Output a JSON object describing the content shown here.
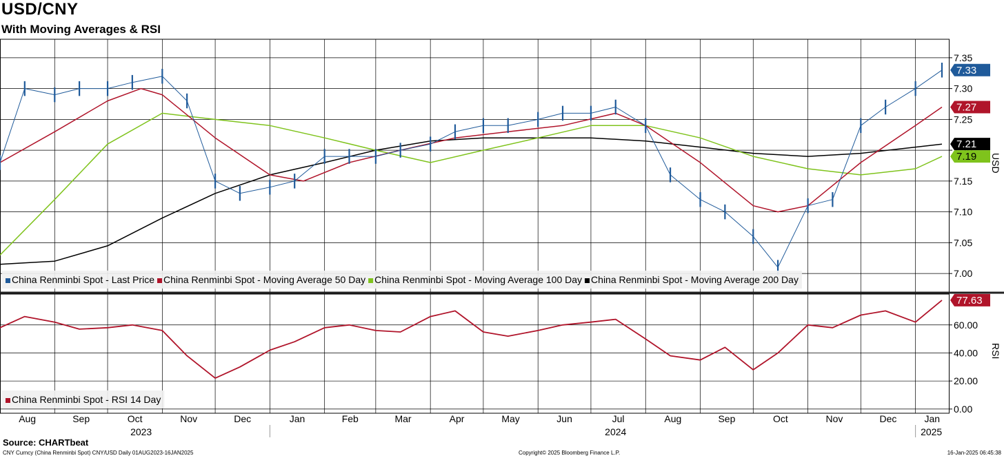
{
  "header": {
    "title": "USD/CNY",
    "subtitle": "With Moving Averages & RSI"
  },
  "footer": {
    "source": "Source: CHARTbeat",
    "ticker_line": "CNY Curncy (China Renminbi Spot) CNY/USD  Daily 01AUG2023-16JAN2025",
    "copyright": "Copyright© 2025 Bloomberg Finance L.P.",
    "timestamp": "16-Jan-2025 06:45:38"
  },
  "colors": {
    "price": "#1f5a9a",
    "ma50": "#b0142a",
    "ma100": "#7fc31c",
    "ma200": "#000000",
    "rsi": "#b0142a",
    "grid": "#000000"
  },
  "chart_data": [
    {
      "type": "line",
      "panel": "price",
      "ylabel": "USD",
      "ylim": [
        6.97,
        7.38
      ],
      "yticks": [
        "7.35",
        "7.30",
        "7.25",
        "7.20",
        "7.15",
        "7.10",
        "7.05",
        "7.00"
      ],
      "x_months": [
        "Aug",
        "Sep",
        "Oct",
        "Nov",
        "Dec",
        "Jan",
        "Feb",
        "Mar",
        "Apr",
        "May",
        "Jun",
        "Jul",
        "Aug",
        "Sep",
        "Oct",
        "Nov",
        "Dec",
        "Jan"
      ],
      "x_years": [
        "2023",
        "2024",
        "2025"
      ],
      "x_range": [
        "2023-08-01",
        "2025-01-16"
      ],
      "last_value_labels": [
        "7.33",
        "7.27",
        "7.21",
        "7.19"
      ],
      "series": [
        {
          "name": "China Renminbi Spot - Last Price",
          "key": "price",
          "style": "ohlc-bars",
          "x": [
            "2023-08-01",
            "2023-08-15",
            "2023-09-01",
            "2023-09-15",
            "2023-10-01",
            "2023-10-15",
            "2023-11-01",
            "2023-11-15",
            "2023-12-01",
            "2023-12-15",
            "2024-01-01",
            "2024-01-15",
            "2024-02-01",
            "2024-02-15",
            "2024-03-01",
            "2024-03-15",
            "2024-04-01",
            "2024-04-15",
            "2024-05-01",
            "2024-05-15",
            "2024-06-01",
            "2024-06-15",
            "2024-07-01",
            "2024-07-15",
            "2024-08-01",
            "2024-08-15",
            "2024-09-01",
            "2024-09-15",
            "2024-10-01",
            "2024-10-15",
            "2024-11-01",
            "2024-11-15",
            "2024-12-01",
            "2024-12-15",
            "2025-01-01",
            "2025-01-16"
          ],
          "values": [
            7.18,
            7.3,
            7.29,
            7.3,
            7.3,
            7.31,
            7.32,
            7.28,
            7.15,
            7.13,
            7.14,
            7.15,
            7.19,
            7.19,
            7.19,
            7.2,
            7.21,
            7.23,
            7.24,
            7.24,
            7.25,
            7.26,
            7.26,
            7.27,
            7.24,
            7.16,
            7.12,
            7.1,
            7.06,
            7.01,
            7.11,
            7.12,
            7.24,
            7.27,
            7.3,
            7.33
          ]
        },
        {
          "name": "China Renminbi Spot - Moving Average 50 Day",
          "key": "ma50",
          "x": [
            "2023-08-01",
            "2023-09-01",
            "2023-10-01",
            "2023-10-20",
            "2023-11-01",
            "2023-12-01",
            "2024-01-01",
            "2024-01-20",
            "2024-02-15",
            "2024-03-15",
            "2024-04-15",
            "2024-05-15",
            "2024-06-15",
            "2024-07-15",
            "2024-08-01",
            "2024-09-01",
            "2024-10-01",
            "2024-10-15",
            "2024-11-01",
            "2024-12-01",
            "2025-01-01",
            "2025-01-16"
          ],
          "values": [
            7.18,
            7.23,
            7.28,
            7.3,
            7.29,
            7.22,
            7.16,
            7.15,
            7.18,
            7.2,
            7.22,
            7.23,
            7.24,
            7.26,
            7.24,
            7.18,
            7.11,
            7.1,
            7.11,
            7.18,
            7.24,
            7.27
          ]
        },
        {
          "name": "China Renminbi Spot - Moving Average 100 Day",
          "key": "ma100",
          "x": [
            "2023-08-01",
            "2023-09-01",
            "2023-10-01",
            "2023-11-01",
            "2023-12-01",
            "2024-01-01",
            "2024-02-01",
            "2024-03-01",
            "2024-04-01",
            "2024-05-01",
            "2024-06-01",
            "2024-07-01",
            "2024-08-01",
            "2024-09-01",
            "2024-10-01",
            "2024-11-01",
            "2024-12-01",
            "2025-01-01",
            "2025-01-16"
          ],
          "values": [
            7.03,
            7.12,
            7.21,
            7.26,
            7.25,
            7.24,
            7.22,
            7.2,
            7.18,
            7.2,
            7.22,
            7.24,
            7.24,
            7.22,
            7.19,
            7.17,
            7.16,
            7.17,
            7.19
          ]
        },
        {
          "name": "China Renminbi Spot - Moving Average 200 Day",
          "key": "ma200",
          "x": [
            "2023-08-01",
            "2023-09-01",
            "2023-10-01",
            "2023-11-01",
            "2023-12-01",
            "2024-01-01",
            "2024-02-01",
            "2024-03-01",
            "2024-04-01",
            "2024-05-01",
            "2024-06-01",
            "2024-07-01",
            "2024-08-01",
            "2024-09-01",
            "2024-10-01",
            "2024-11-01",
            "2024-12-01",
            "2025-01-01",
            "2025-01-16"
          ],
          "values": [
            7.015,
            7.02,
            7.045,
            7.09,
            7.13,
            7.16,
            7.18,
            7.2,
            7.215,
            7.22,
            7.22,
            7.22,
            7.215,
            7.205,
            7.195,
            7.19,
            7.195,
            7.205,
            7.21
          ]
        }
      ]
    },
    {
      "type": "line",
      "panel": "rsi",
      "ylabel": "RSI",
      "ylim": [
        -3,
        82
      ],
      "yticks": [
        "60.00",
        "40.00",
        "20.00",
        "0.00"
      ],
      "last_value_labels": [
        "77.63"
      ],
      "series": [
        {
          "name": "China Renminbi Spot - RSI 14 Day",
          "key": "rsi",
          "x": [
            "2023-08-01",
            "2023-08-15",
            "2023-09-01",
            "2023-09-15",
            "2023-10-01",
            "2023-10-15",
            "2023-11-01",
            "2023-11-15",
            "2023-12-01",
            "2023-12-15",
            "2024-01-01",
            "2024-01-15",
            "2024-02-01",
            "2024-02-15",
            "2024-03-01",
            "2024-03-15",
            "2024-04-01",
            "2024-04-15",
            "2024-05-01",
            "2024-05-15",
            "2024-06-01",
            "2024-06-15",
            "2024-07-01",
            "2024-07-15",
            "2024-08-01",
            "2024-08-15",
            "2024-09-01",
            "2024-09-15",
            "2024-10-01",
            "2024-10-15",
            "2024-11-01",
            "2024-11-15",
            "2024-12-01",
            "2024-12-15",
            "2025-01-01",
            "2025-01-16"
          ],
          "values": [
            58,
            66,
            62,
            57,
            58,
            60,
            56,
            38,
            22,
            30,
            42,
            48,
            58,
            60,
            56,
            55,
            66,
            70,
            55,
            52,
            56,
            60,
            62,
            64,
            50,
            38,
            35,
            44,
            28,
            40,
            60,
            58,
            67,
            70,
            62,
            77.63
          ]
        }
      ]
    }
  ]
}
